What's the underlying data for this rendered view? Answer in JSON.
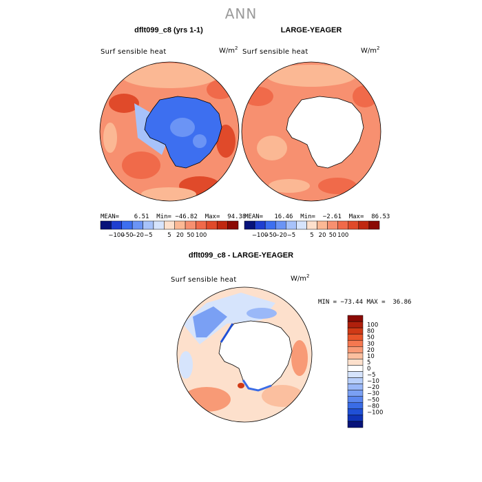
{
  "title": "ANN",
  "panels": {
    "left": {
      "title": "dflt099_c8 (yrs 1-1)",
      "variable": "Surf sensible heat",
      "units_base": "W/m",
      "units_exp": "2",
      "stats": "MEAN=    6.51  Min= −46.82  Max=  94.38",
      "antarctica_fill": "#3d6ff0",
      "ocean_fill": "#f79070"
    },
    "right": {
      "title": "LARGE-YEAGER",
      "variable": "Surf sensible heat",
      "units_base": "W/m",
      "units_exp": "2",
      "stats": "MEAN=   16.46  Min=  −2.61  Max=  86.53",
      "antarctica_fill": "#ffffff",
      "ocean_fill": "#f79070"
    },
    "diff": {
      "title": "dflt099_c8 - LARGE-YEAGER",
      "variable": "Surf sensible heat",
      "units_base": "W/m",
      "units_exp": "2",
      "stats": "MIN = −73.44 MAX =  36.86",
      "antarctica_fill": "#ffffff",
      "ocean_fill": "#fde0cc"
    }
  },
  "colorbar_top": {
    "colors": [
      "#08137a",
      "#1f3fd0",
      "#3d6ff0",
      "#6b94f5",
      "#a7c2fa",
      "#d6e4fc",
      "#fde0cc",
      "#fbb894",
      "#f79070",
      "#f06a4a",
      "#e04a2a",
      "#c02810",
      "#8b0a04"
    ],
    "ticks": [
      "−100",
      "−50",
      "−20",
      "−5",
      "5",
      "20",
      "50",
      "100"
    ]
  },
  "colorbar_diff": {
    "colors": [
      "#8b0a04",
      "#b0200c",
      "#d03a16",
      "#e8552a",
      "#f57850",
      "#f89a76",
      "#fbbf9f",
      "#fde0cc",
      "#ffffff",
      "#d6e4fc",
      "#b8cffb",
      "#9ab8f8",
      "#7aa0f4",
      "#5a86ef",
      "#3a6ce6",
      "#2050d6",
      "#1034b8",
      "#08137a"
    ],
    "ticks": [
      "100",
      "80",
      "50",
      "30",
      "20",
      "10",
      "5",
      "0",
      "−5",
      "−10",
      "−20",
      "−30",
      "−50",
      "−80",
      "−100"
    ]
  }
}
